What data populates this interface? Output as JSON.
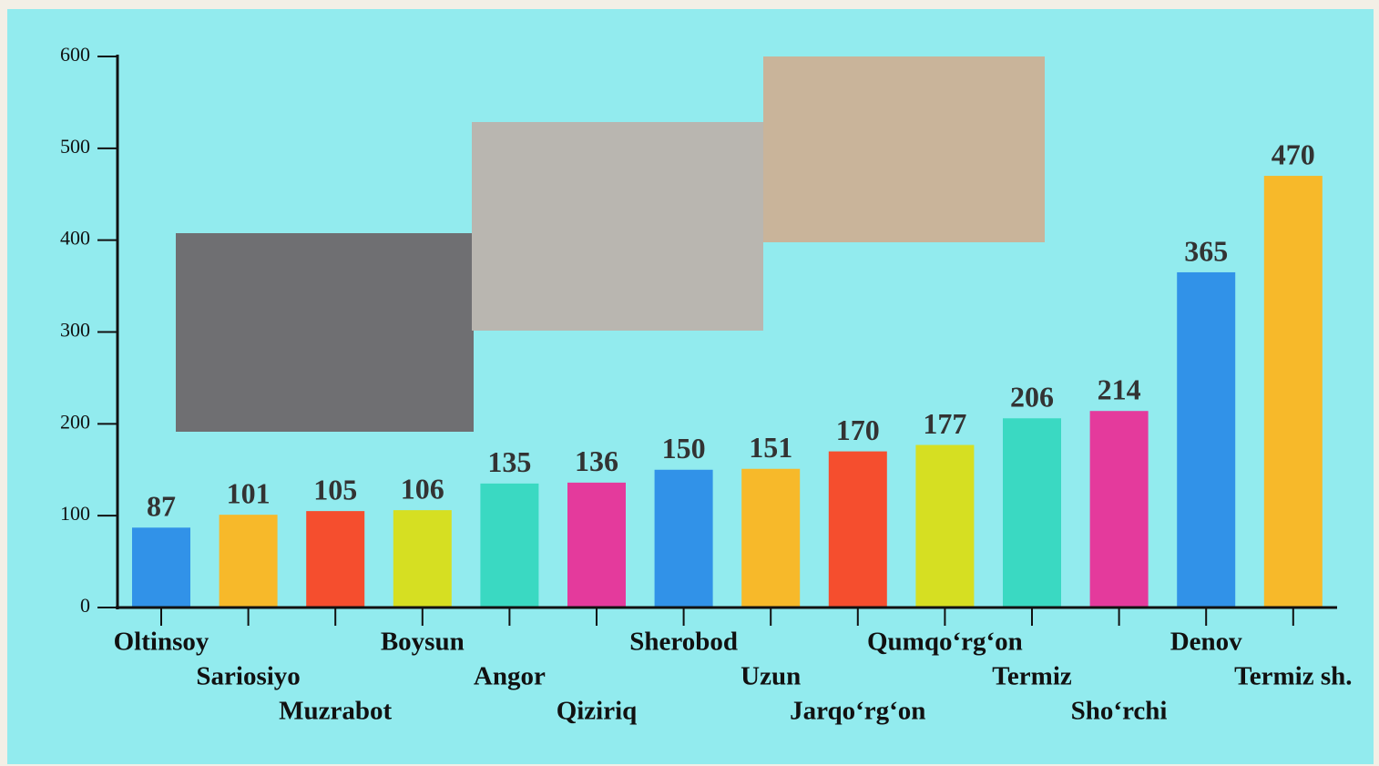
{
  "chart_data": {
    "type": "bar",
    "categories": [
      "Oltinsoy",
      "Sariosiyo",
      "Muzrabot",
      "Boysun",
      "Angor",
      "Qiziriq",
      "Sherobod",
      "Uzun",
      "Jarqo‘rg‘on",
      "Qumqo‘rg‘on",
      "Termiz",
      "Sho‘rchi",
      "Denov",
      "Termiz sh."
    ],
    "values": [
      87,
      101,
      105,
      106,
      135,
      136,
      150,
      151,
      170,
      177,
      206,
      214,
      365,
      470
    ],
    "colors": [
      "#3192e8",
      "#f7b92a",
      "#f54e2e",
      "#d6df22",
      "#3ad9c2",
      "#e43a9c",
      "#3192e8",
      "#f7b92a",
      "#f54e2e",
      "#d6df22",
      "#3ad9c2",
      "#e43a9c",
      "#3192e8",
      "#f7b92a"
    ],
    "ylim": [
      0,
      600
    ],
    "yticks": [
      0,
      100,
      200,
      300,
      400,
      500,
      600
    ]
  }
}
